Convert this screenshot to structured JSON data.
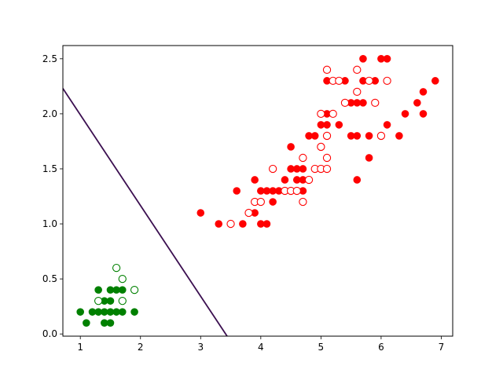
{
  "chart_data": {
    "type": "scatter",
    "title": "",
    "xlabel": "",
    "ylabel": "",
    "xlim": [
      0.71,
      7.19
    ],
    "ylim": [
      -0.02,
      2.62
    ],
    "grid": false,
    "legend": "none",
    "xticks": [
      1,
      2,
      3,
      4,
      5,
      6,
      7
    ],
    "yticks": [
      0.0,
      0.5,
      1.0,
      1.5,
      2.0,
      2.5
    ],
    "ytick_labels": [
      "0.0",
      "0.5",
      "1.0",
      "1.5",
      "2.0",
      "2.5"
    ],
    "decision_boundary": {
      "color": "#3b0f50",
      "points": [
        [
          0.71,
          2.23
        ],
        [
          3.44,
          -0.02
        ]
      ]
    },
    "series": [
      {
        "marker": "filled",
        "color": "#008000",
        "points": [
          [
            1.0,
            0.2
          ],
          [
            1.1,
            0.1
          ],
          [
            1.2,
            0.2
          ],
          [
            1.3,
            0.2
          ],
          [
            1.3,
            0.4
          ],
          [
            1.4,
            0.2
          ],
          [
            1.4,
            0.3
          ],
          [
            1.4,
            0.1
          ],
          [
            1.5,
            0.2
          ],
          [
            1.5,
            0.4
          ],
          [
            1.5,
            0.1
          ],
          [
            1.5,
            0.3
          ],
          [
            1.6,
            0.2
          ],
          [
            1.6,
            0.4
          ],
          [
            1.7,
            0.2
          ],
          [
            1.7,
            0.4
          ],
          [
            1.9,
            0.2
          ]
        ]
      },
      {
        "marker": "open",
        "color": "#008000",
        "points": [
          [
            1.3,
            0.3
          ],
          [
            1.6,
            0.6
          ],
          [
            1.7,
            0.5
          ],
          [
            1.7,
            0.3
          ],
          [
            1.9,
            0.4
          ]
        ]
      },
      {
        "marker": "filled",
        "color": "#ff0000",
        "points": [
          [
            3.0,
            1.1
          ],
          [
            3.3,
            1.0
          ],
          [
            3.6,
            1.3
          ],
          [
            3.7,
            1.0
          ],
          [
            3.9,
            1.1
          ],
          [
            3.9,
            1.4
          ],
          [
            4.0,
            1.3
          ],
          [
            4.0,
            1.0
          ],
          [
            4.1,
            1.3
          ],
          [
            4.1,
            1.0
          ],
          [
            4.2,
            1.3
          ],
          [
            4.2,
            1.2
          ],
          [
            4.3,
            1.3
          ],
          [
            4.4,
            1.4
          ],
          [
            4.4,
            1.3
          ],
          [
            4.5,
            1.5
          ],
          [
            4.5,
            1.3
          ],
          [
            4.5,
            1.7
          ],
          [
            4.6,
            1.5
          ],
          [
            4.6,
            1.4
          ],
          [
            4.7,
            1.4
          ],
          [
            4.7,
            1.5
          ],
          [
            4.7,
            1.3
          ],
          [
            4.8,
            1.8
          ],
          [
            4.9,
            1.5
          ],
          [
            4.9,
            1.8
          ],
          [
            5.0,
            1.9
          ],
          [
            5.0,
            2.0
          ],
          [
            5.1,
            1.9
          ],
          [
            5.1,
            2.0
          ],
          [
            5.1,
            2.3
          ],
          [
            5.3,
            1.9
          ],
          [
            5.4,
            2.3
          ],
          [
            5.5,
            1.8
          ],
          [
            5.5,
            2.1
          ],
          [
            5.6,
            1.4
          ],
          [
            5.6,
            1.8
          ],
          [
            5.6,
            2.1
          ],
          [
            5.7,
            2.1
          ],
          [
            5.7,
            2.3
          ],
          [
            5.7,
            2.5
          ],
          [
            5.8,
            1.6
          ],
          [
            5.8,
            1.8
          ],
          [
            5.9,
            2.3
          ],
          [
            6.0,
            2.5
          ],
          [
            6.1,
            2.5
          ],
          [
            6.1,
            1.9
          ],
          [
            6.3,
            1.8
          ],
          [
            6.4,
            2.0
          ],
          [
            6.6,
            2.1
          ],
          [
            6.7,
            2.2
          ],
          [
            6.7,
            2.0
          ],
          [
            6.9,
            2.3
          ]
        ]
      },
      {
        "marker": "open",
        "color": "#ff0000",
        "points": [
          [
            3.5,
            1.0
          ],
          [
            3.8,
            1.1
          ],
          [
            3.9,
            1.2
          ],
          [
            4.0,
            1.2
          ],
          [
            4.2,
            1.5
          ],
          [
            4.4,
            1.3
          ],
          [
            4.5,
            1.3
          ],
          [
            4.6,
            1.3
          ],
          [
            4.7,
            1.6
          ],
          [
            4.7,
            1.2
          ],
          [
            4.8,
            1.4
          ],
          [
            4.9,
            1.5
          ],
          [
            5.0,
            1.7
          ],
          [
            5.0,
            2.0
          ],
          [
            5.0,
            1.5
          ],
          [
            5.1,
            2.4
          ],
          [
            5.1,
            1.6
          ],
          [
            5.1,
            1.8
          ],
          [
            5.1,
            1.5
          ],
          [
            5.2,
            2.0
          ],
          [
            5.2,
            2.3
          ],
          [
            5.3,
            2.3
          ],
          [
            5.4,
            2.1
          ],
          [
            5.6,
            2.4
          ],
          [
            5.6,
            2.2
          ],
          [
            5.8,
            2.3
          ],
          [
            5.9,
            2.1
          ],
          [
            6.0,
            1.8
          ],
          [
            6.1,
            2.3
          ]
        ]
      }
    ]
  }
}
